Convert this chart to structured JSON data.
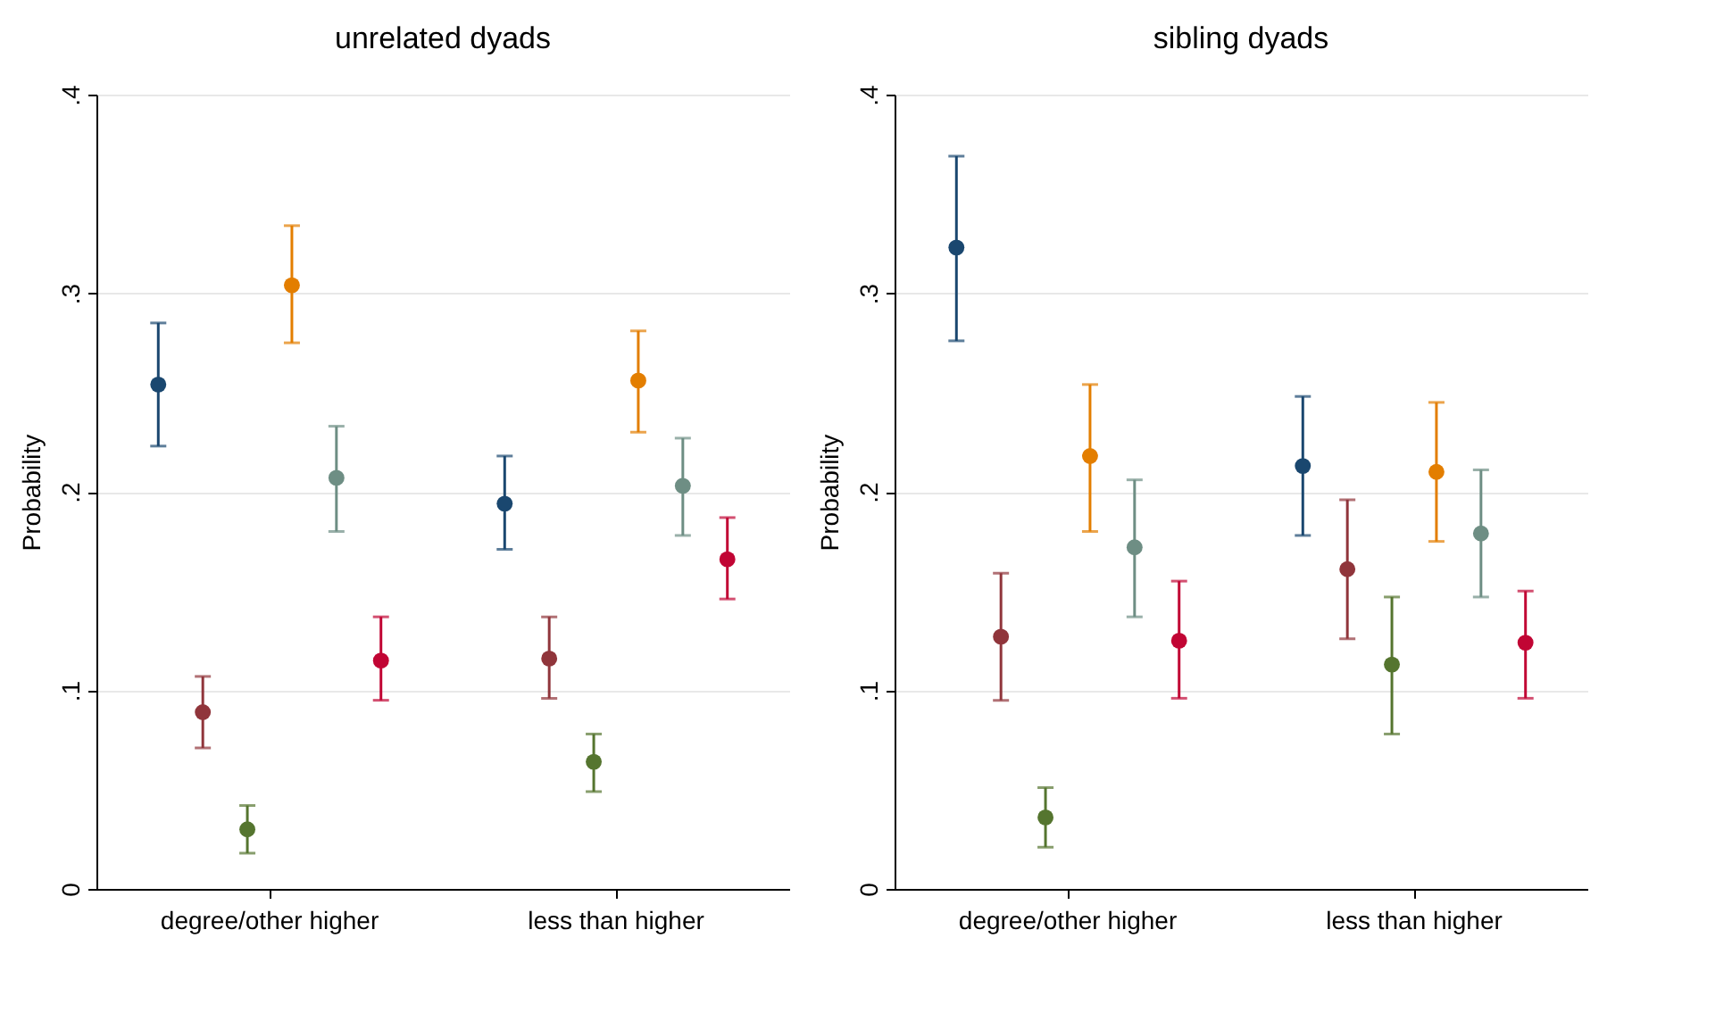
{
  "chart_data": [
    {
      "type": "scatter",
      "title": "unrelated dyads",
      "ylabel": "Probability",
      "categories": [
        "degree/other higher",
        "less than higher"
      ],
      "marker": "circle",
      "grid": "y",
      "ylim": [
        0,
        0.4
      ],
      "yticks": [
        {
          "value": 0,
          "label": "0"
        },
        {
          "value": 0.1,
          "label": ".1"
        },
        {
          "value": 0.2,
          "label": ".2"
        },
        {
          "value": 0.3,
          "label": ".3"
        },
        {
          "value": 0.4,
          "label": ".4"
        }
      ],
      "series": [
        {
          "color": "#1a476f",
          "values": [
            0.254,
            0.194
          ],
          "errors": [
            [
              0.223,
              0.285
            ],
            [
              0.171,
              0.218
            ]
          ]
        },
        {
          "color": "#90353b",
          "values": [
            0.089,
            0.116
          ],
          "errors": [
            [
              0.071,
              0.107
            ],
            [
              0.096,
              0.137
            ]
          ]
        },
        {
          "color": "#55752f",
          "values": [
            0.03,
            0.064
          ],
          "errors": [
            [
              0.018,
              0.042
            ],
            [
              0.049,
              0.078
            ]
          ]
        },
        {
          "color": "#e37e00",
          "values": [
            0.304,
            0.256
          ],
          "errors": [
            [
              0.275,
              0.334
            ],
            [
              0.23,
              0.281
            ]
          ]
        },
        {
          "color": "#6e8e84",
          "values": [
            0.207,
            0.203
          ],
          "errors": [
            [
              0.18,
              0.233
            ],
            [
              0.178,
              0.227
            ]
          ]
        },
        {
          "color": "#c10534",
          "values": [
            0.115,
            0.166
          ],
          "errors": [
            [
              0.095,
              0.137
            ],
            [
              0.146,
              0.187
            ]
          ]
        }
      ]
    },
    {
      "type": "scatter",
      "title": "sibling dyads",
      "ylabel": "Probability",
      "categories": [
        "degree/other higher",
        "less than higher"
      ],
      "marker": "circle",
      "grid": "y",
      "ylim": [
        0,
        0.4
      ],
      "yticks": [
        {
          "value": 0,
          "label": "0"
        },
        {
          "value": 0.1,
          "label": ".1"
        },
        {
          "value": 0.2,
          "label": ".2"
        },
        {
          "value": 0.3,
          "label": ".3"
        },
        {
          "value": 0.4,
          "label": ".4"
        }
      ],
      "series": [
        {
          "color": "#1a476f",
          "values": [
            0.323,
            0.213
          ],
          "errors": [
            [
              0.276,
              0.369
            ],
            [
              0.178,
              0.248
            ]
          ]
        },
        {
          "color": "#90353b",
          "values": [
            0.127,
            0.161
          ],
          "errors": [
            [
              0.095,
              0.159
            ],
            [
              0.126,
              0.196
            ]
          ]
        },
        {
          "color": "#55752f",
          "values": [
            0.036,
            0.113
          ],
          "errors": [
            [
              0.021,
              0.051
            ],
            [
              0.078,
              0.147
            ]
          ]
        },
        {
          "color": "#e37e00",
          "values": [
            0.218,
            0.21
          ],
          "errors": [
            [
              0.18,
              0.254
            ],
            [
              0.175,
              0.245
            ]
          ]
        },
        {
          "color": "#6e8e84",
          "values": [
            0.172,
            0.179
          ],
          "errors": [
            [
              0.137,
              0.206
            ],
            [
              0.147,
              0.211
            ]
          ]
        },
        {
          "color": "#c10534",
          "values": [
            0.125,
            0.124
          ],
          "errors": [
            [
              0.096,
              0.155
            ],
            [
              0.096,
              0.15
            ]
          ]
        }
      ]
    }
  ]
}
